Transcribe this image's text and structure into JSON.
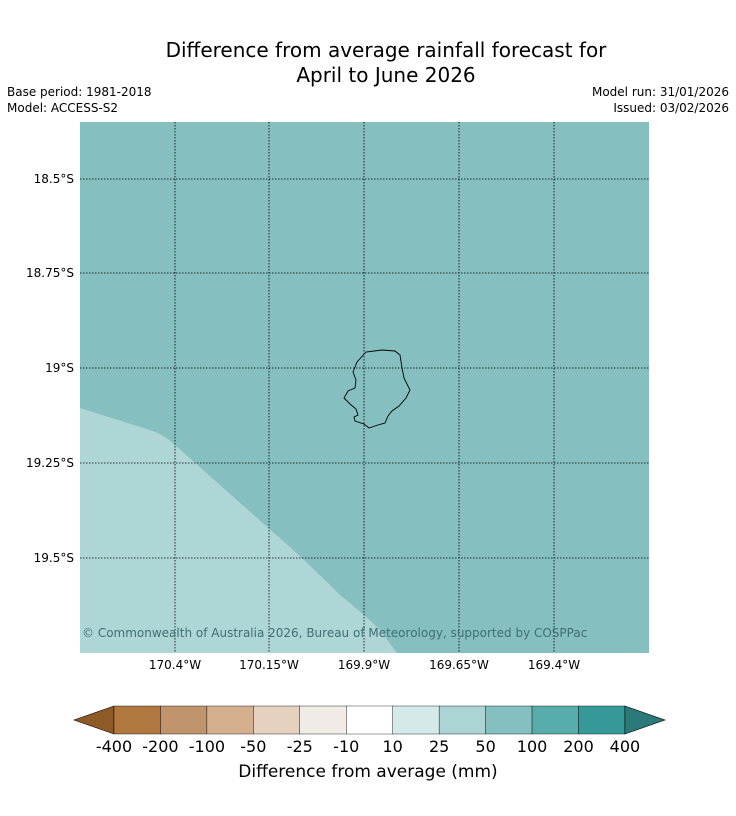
{
  "title": {
    "line1": "Difference from average rainfall forecast for",
    "line2": "April to June 2026"
  },
  "meta": {
    "base_period": "Base period: 1981-2018",
    "model": "Model: ACCESS-S2",
    "model_run": "Model run: 31/01/2026",
    "issued": "Issued: 03/02/2026"
  },
  "map": {
    "lat_ticks": [
      "18.5°S",
      "18.75°S",
      "19°S",
      "19.25°S",
      "19.5°S"
    ],
    "lon_ticks": [
      "170.4°W",
      "170.15°W",
      "169.9°W",
      "169.65°W",
      "169.4°W"
    ],
    "region_colors": {
      "main": "#85bfbf",
      "lower_left": "#afd6d6"
    },
    "copyright": "© Commonwealth of Australia 2026, Bureau of Meteorology, supported by COSPPac"
  },
  "colorbar": {
    "labels": [
      "-400",
      "-200",
      "-100",
      "-50",
      "-25",
      "-10",
      "10",
      "25",
      "50",
      "100",
      "200",
      "400"
    ],
    "colors": [
      "#8f5a26",
      "#b0773e",
      "#c1956b",
      "#d4b08f",
      "#e6d0be",
      "#f0ebe6",
      "#ffffff",
      "#d5e9e9",
      "#acd4d4",
      "#86bfbf",
      "#59acac",
      "#359999",
      "#2a7a7a"
    ],
    "title": "Difference from average (mm)"
  }
}
